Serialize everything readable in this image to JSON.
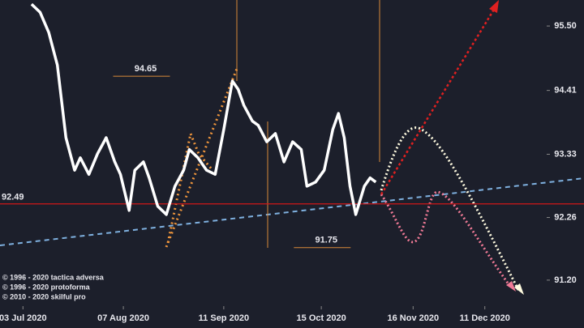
{
  "chart_data": {
    "type": "line",
    "series": [
      {
        "name": null,
        "color": "#ffffff",
        "x": [
          3,
          6,
          9,
          12,
          15,
          18,
          20,
          23,
          26,
          29,
          32,
          34,
          37,
          39,
          42,
          44,
          47,
          50,
          53,
          56,
          58,
          61,
          64,
          67,
          70,
          73,
          75,
          77,
          80,
          82,
          85,
          88,
          91,
          94,
          97,
          99,
          102,
          105,
          108,
          110,
          112,
          114,
          116,
          119,
          121,
          123
        ],
        "values": [
          95.87,
          95.73,
          95.39,
          94.84,
          93.61,
          93.06,
          93.27,
          92.99,
          93.34,
          93.61,
          93.2,
          92.99,
          92.38,
          93.06,
          93.2,
          92.93,
          92.45,
          92.31,
          92.79,
          93.06,
          93.41,
          93.27,
          93.06,
          92.99,
          93.75,
          94.57,
          94.43,
          94.16,
          93.89,
          93.82,
          93.54,
          93.68,
          93.2,
          93.54,
          93.41,
          92.79,
          92.86,
          93.06,
          93.75,
          94.02,
          93.61,
          92.79,
          92.31,
          92.79,
          92.93,
          92.86
        ]
      }
    ],
    "xlim": [
      -8,
      182
    ],
    "xticks": [
      {
        "value": 0,
        "label": "03 Jul 2020"
      },
      {
        "value": 35,
        "label": "07 Aug 2020"
      },
      {
        "value": 70,
        "label": "11 Sep 2020"
      },
      {
        "value": 104,
        "label": "15 Oct 2020"
      },
      {
        "value": 136,
        "label": "16 Nov 2020"
      },
      {
        "value": 161,
        "label": "11 Dec 2020"
      }
    ],
    "ylim": [
      90.76,
      95.94
    ],
    "yticks": [
      {
        "value": 95.5,
        "label": "95.50"
      },
      94.41,
      93.33,
      92.26,
      {
        "value": 91.2,
        "label": "91.20"
      }
    ],
    "reference_line": 92.49,
    "annotations": [
      {
        "x": 32,
        "value": 94.65
      },
      {
        "x": 95,
        "value": 91.75
      }
    ],
    "notes": [
      "© 1996 - 2020 tactica adversa",
      "© 1996 - 2020 protoforma",
      "© 2010 - 2020 skilful pro"
    ]
  }
}
